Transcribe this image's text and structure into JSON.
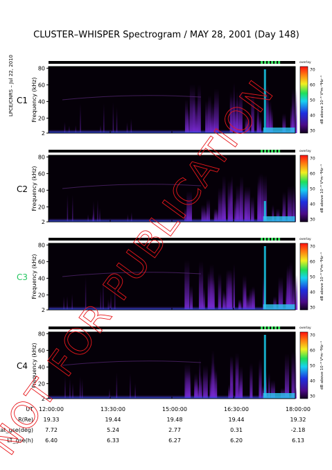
{
  "title": "CLUSTER–WHISPER Spectrogram / MAY 28, 2001 (Day 148)",
  "side_label": "LPCE/CNRS – Jul 22, 2010",
  "watermark": "NOT FOR PUBLICATION",
  "watermark_color": "#e8181c",
  "sidebar_tag": "overlay",
  "colorbar": {
    "label": "dB above 10⁻⁸ V²m⁻²Hz⁻¹",
    "ticks": [
      70,
      60,
      50,
      40,
      30
    ]
  },
  "chart_data": [
    {
      "type": "heatmap",
      "panel": "C1",
      "label_color": "#000000",
      "ylabel": "Frequency (kHz)",
      "yticks": [
        80,
        60,
        40,
        20,
        2
      ],
      "ylim": [
        2,
        82
      ],
      "xlim": [
        "12:00:00",
        "18:00:00"
      ],
      "zlim": [
        30,
        70
      ],
      "zunit": "dB"
    },
    {
      "type": "heatmap",
      "panel": "C2",
      "label_color": "#000000",
      "ylabel": "Frequency (kHz)",
      "yticks": [
        80,
        60,
        40,
        20,
        2
      ],
      "ylim": [
        2,
        82
      ],
      "xlim": [
        "12:00:00",
        "18:00:00"
      ],
      "zlim": [
        30,
        70
      ],
      "zunit": "dB"
    },
    {
      "type": "heatmap",
      "panel": "C3",
      "label_color": "#22c55e",
      "ylabel": "Frequency (kHz)",
      "yticks": [
        80,
        60,
        40,
        20,
        2
      ],
      "ylim": [
        2,
        82
      ],
      "xlim": [
        "12:00:00",
        "18:00:00"
      ],
      "zlim": [
        30,
        70
      ],
      "zunit": "dB"
    },
    {
      "type": "heatmap",
      "panel": "C4",
      "label_color": "#000000",
      "ylabel": "Frequency (kHz)",
      "yticks": [
        80,
        60,
        40,
        20,
        2
      ],
      "ylim": [
        2,
        82
      ],
      "xlim": [
        "12:00:00",
        "18:00:00"
      ],
      "zlim": [
        30,
        70
      ],
      "zunit": "dB"
    }
  ],
  "ephemeris": {
    "rows": [
      {
        "label": "UT",
        "values": [
          "12:00:00",
          "13:30:00",
          "15:00:00",
          "16:30:00",
          "18:00:00"
        ]
      },
      {
        "label": "R(Re)",
        "values": [
          "19.33",
          "19.44",
          "19.48",
          "19.44",
          "19.32"
        ]
      },
      {
        "label": "Lat_gse(deg)",
        "values": [
          "7.72",
          "5.24",
          "2.77",
          "0.31",
          "-2.18"
        ]
      },
      {
        "label": "LT_gse(h)",
        "values": [
          "6.40",
          "6.33",
          "6.27",
          "6.20",
          "6.13"
        ]
      }
    ]
  }
}
